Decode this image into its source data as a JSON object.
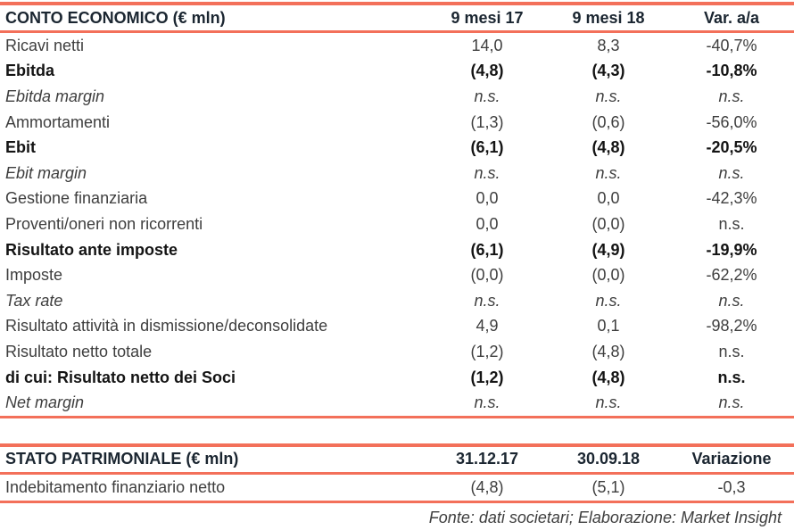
{
  "colors": {
    "accent": "#F3705A",
    "header_text": "#1B2631",
    "body_text": "#3E3E3E",
    "bold_text": "#141414"
  },
  "income_statement": {
    "title": "CONTO ECONOMICO (€ mln)",
    "columns": [
      "9 mesi 17",
      "9 mesi 18",
      "Var. a/a"
    ],
    "rows": [
      {
        "label": "Ricavi netti",
        "v1": "14,0",
        "v2": "8,3",
        "var": "-40,7%"
      },
      {
        "label": "Ebitda",
        "v1": "(4,8)",
        "v2": "(4,3)",
        "var": "-10,8%"
      },
      {
        "label": "Ebitda margin",
        "v1": "n.s.",
        "v2": "n.s.",
        "var": "n.s."
      },
      {
        "label": "Ammortamenti",
        "v1": "(1,3)",
        "v2": "(0,6)",
        "var": "-56,0%"
      },
      {
        "label": "Ebit",
        "v1": "(6,1)",
        "v2": "(4,8)",
        "var": "-20,5%"
      },
      {
        "label": "Ebit margin",
        "v1": "n.s.",
        "v2": "n.s.",
        "var": "n.s."
      },
      {
        "label": "Gestione finanziaria",
        "v1": "0,0",
        "v2": "0,0",
        "var": "-42,3%"
      },
      {
        "label": "Proventi/oneri non ricorrenti",
        "v1": "0,0",
        "v2": "(0,0)",
        "var": "n.s."
      },
      {
        "label": "Risultato ante imposte",
        "v1": "(6,1)",
        "v2": "(4,9)",
        "var": "-19,9%"
      },
      {
        "label": "Imposte",
        "v1": "(0,0)",
        "v2": "(0,0)",
        "var": "-62,2%"
      },
      {
        "label": "Tax rate",
        "v1": "n.s.",
        "v2": "n.s.",
        "var": "n.s."
      },
      {
        "label": "Risultato attività in dismissione/deconsolidate",
        "v1": "4,9",
        "v2": "0,1",
        "var": "-98,2%"
      },
      {
        "label": "Risultato netto totale",
        "v1": "(1,2)",
        "v2": "(4,8)",
        "var": "n.s."
      },
      {
        "label": "di cui: Risultato netto dei Soci",
        "v1": "(1,2)",
        "v2": "(4,8)",
        "var": "n.s."
      },
      {
        "label": "Net margin",
        "v1": "n.s.",
        "v2": "n.s.",
        "var": "n.s."
      }
    ]
  },
  "balance_sheet": {
    "title": "STATO PATRIMONIALE (€ mln)",
    "columns": [
      "31.12.17",
      "30.09.18",
      "Variazione"
    ],
    "rows": [
      {
        "label": "Indebitamento finanziario netto",
        "v1": "(4,8)",
        "v2": "(5,1)",
        "var": "-0,3"
      }
    ]
  },
  "footer": {
    "text": "Fonte: dati societari; Elaborazione: Market Insight"
  }
}
